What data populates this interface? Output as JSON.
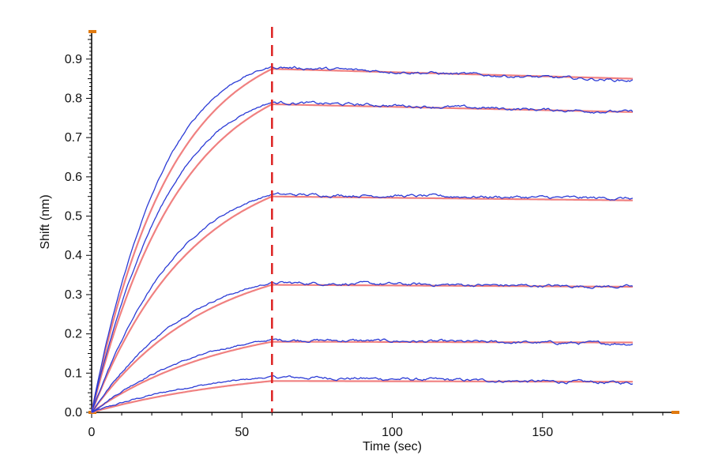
{
  "chart_data": {
    "type": "line",
    "title": "",
    "xlabel": "Time (sec)",
    "ylabel": "Shift (nm)",
    "xlim": [
      0,
      195
    ],
    "ylim": [
      0,
      0.97
    ],
    "x_ticks": [
      0,
      50,
      100,
      150
    ],
    "y_ticks": [
      0.0,
      0.1,
      0.2,
      0.3,
      0.4,
      0.5,
      0.6,
      0.7,
      0.8,
      0.9
    ],
    "x_tick_labels": [
      "0",
      "50",
      "100",
      "150"
    ],
    "y_tick_labels": [
      "0.0",
      "0.1",
      "0.2",
      "0.3",
      "0.4",
      "0.5",
      "0.6",
      "0.7",
      "0.8",
      "0.9"
    ],
    "grid": false,
    "dissociation_start_x": 60,
    "x_end": 180,
    "colors": {
      "measured": "#2b3bd6",
      "fit": "#f08080",
      "marker_line": "#dd2222",
      "axis": "#000000",
      "axis_end_mark": "#e07a10"
    },
    "series": [
      {
        "label": "measured",
        "peak_y": 0.09,
        "end_y": 0.075
      },
      {
        "label": "measured",
        "peak_y": 0.185,
        "end_y": 0.175
      },
      {
        "label": "measured",
        "peak_y": 0.33,
        "end_y": 0.32
      },
      {
        "label": "measured",
        "peak_y": 0.555,
        "end_y": 0.545
      },
      {
        "label": "measured",
        "peak_y": 0.79,
        "end_y": 0.765
      },
      {
        "label": "measured",
        "peak_y": 0.88,
        "end_y": 0.845
      },
      {
        "label": "fit",
        "peak_y": 0.08,
        "end_y": 0.078
      },
      {
        "label": "fit",
        "peak_y": 0.18,
        "end_y": 0.178
      },
      {
        "label": "fit",
        "peak_y": 0.325,
        "end_y": 0.32
      },
      {
        "label": "fit",
        "peak_y": 0.55,
        "end_y": 0.54
      },
      {
        "label": "fit",
        "peak_y": 0.785,
        "end_y": 0.765
      },
      {
        "label": "fit",
        "peak_y": 0.875,
        "end_y": 0.85
      }
    ]
  }
}
